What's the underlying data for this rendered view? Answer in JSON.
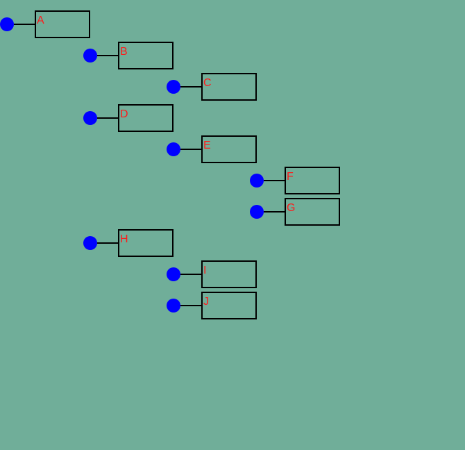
{
  "tree": {
    "nodes": [
      {
        "id": "a",
        "label": "A",
        "depth": 0
      },
      {
        "id": "b",
        "label": "B",
        "depth": 1
      },
      {
        "id": "c",
        "label": "C",
        "depth": 2
      },
      {
        "id": "d",
        "label": "D",
        "depth": 1
      },
      {
        "id": "e",
        "label": "E",
        "depth": 2
      },
      {
        "id": "f",
        "label": "F",
        "depth": 3
      },
      {
        "id": "g",
        "label": "G",
        "depth": 3
      },
      {
        "id": "h",
        "label": "H",
        "depth": 1
      },
      {
        "id": "i",
        "label": "I",
        "depth": 2
      },
      {
        "id": "j",
        "label": "J",
        "depth": 2
      }
    ]
  },
  "colors": {
    "background": "#70ae99",
    "handle": "#0000ff",
    "label": "#ff1a1a",
    "line": "#000000"
  }
}
